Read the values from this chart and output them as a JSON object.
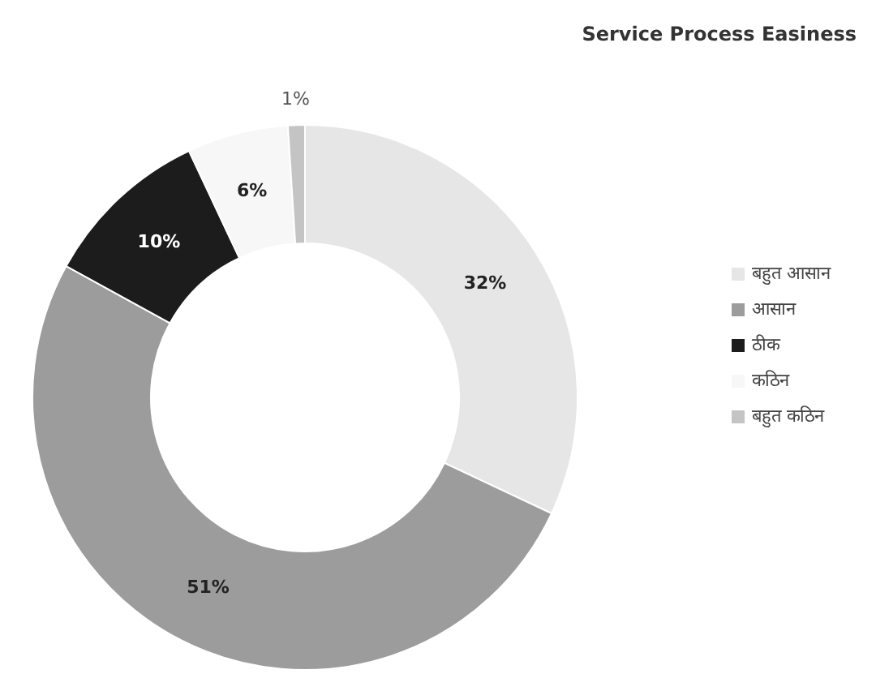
{
  "chart_data": {
    "type": "donut",
    "title": "Service Process Easiness",
    "categories": [
      "बहुत आसान",
      "आसान",
      "ठीक",
      "कठिन",
      "बहुत कठिन"
    ],
    "values": [
      32,
      51,
      10,
      6,
      1
    ],
    "colors": [
      "#e6e6e6",
      "#9c9c9c",
      "#1c1c1c",
      "#f7f7f7",
      "#c4c4c4"
    ],
    "value_labels": [
      "32%",
      "51%",
      "10%",
      "6%",
      "1%"
    ],
    "legend": "right"
  }
}
